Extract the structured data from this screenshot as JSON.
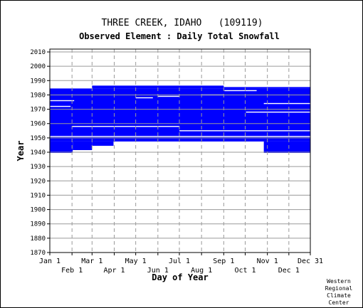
{
  "chart_data": {
    "type": "heatmap",
    "title": "THREE CREEK, IDAHO   (109119)",
    "subtitle": "Observed Element : Daily Total Snowfall",
    "xlabel": "Day of Year",
    "ylabel": "Year",
    "xlim": [
      1,
      365
    ],
    "ylim": [
      1870,
      2012
    ],
    "y_ticks": [
      2010,
      2000,
      1990,
      1980,
      1970,
      1960,
      1950,
      1940,
      1930,
      1920,
      1910,
      1900,
      1890,
      1880,
      1870
    ],
    "x_ticks_top_row": [
      {
        "label": "Jan 1",
        "day": 1
      },
      {
        "label": "Mar 1",
        "day": 60
      },
      {
        "label": "May 1",
        "day": 121
      },
      {
        "label": "Jul 1",
        "day": 182
      },
      {
        "label": "Sep 1",
        "day": 244
      },
      {
        "label": "Nov 1",
        "day": 305
      },
      {
        "label": "Dec 31",
        "day": 365
      }
    ],
    "x_ticks_bottom_row": [
      {
        "label": "Feb 1",
        "day": 32
      },
      {
        "label": "Apr 1",
        "day": 91
      },
      {
        "label": "Jun 1",
        "day": 152
      },
      {
        "label": "Aug 1",
        "day": 213
      },
      {
        "label": "Oct 1",
        "day": 274
      },
      {
        "label": "Dec 1",
        "day": 335
      }
    ],
    "grid": true,
    "data_color": "#0000ff",
    "observed_blocks": [
      {
        "day_start": 1,
        "day_end": 365,
        "year_start": 1948,
        "year_end": 1984
      },
      {
        "day_start": 1,
        "day_end": 33,
        "year_start": 1940,
        "year_end": 1947
      },
      {
        "day_start": 33,
        "day_end": 60,
        "year_start": 1942,
        "year_end": 1947
      },
      {
        "day_start": 60,
        "day_end": 90,
        "year_start": 1945,
        "year_end": 1947
      },
      {
        "day_start": 300,
        "day_end": 365,
        "year_start": 1940,
        "year_end": 1947
      },
      {
        "day_start": 60,
        "day_end": 244,
        "year_start": 1985,
        "year_end": 1986
      },
      {
        "day_start": 244,
        "day_end": 365,
        "year_start": 1985,
        "year_end": 1985
      }
    ],
    "missing_gaps": [
      {
        "day_start": 1,
        "day_end": 365,
        "year": 1951
      },
      {
        "day_start": 32,
        "day_end": 182,
        "year": 1958
      },
      {
        "day_start": 182,
        "day_end": 365,
        "year": 1955
      },
      {
        "day_start": 275,
        "day_end": 365,
        "year": 1968
      },
      {
        "day_start": 1,
        "day_end": 35,
        "year": 1976
      },
      {
        "day_start": 1,
        "day_end": 30,
        "year": 1972
      },
      {
        "day_start": 300,
        "day_end": 365,
        "year": 1974
      },
      {
        "day_start": 121,
        "day_end": 145,
        "year": 1978
      },
      {
        "day_start": 152,
        "day_end": 182,
        "year": 1979
      },
      {
        "day_start": 213,
        "day_end": 244,
        "year": 1980
      },
      {
        "day_start": 245,
        "day_end": 290,
        "year": 1983
      }
    ]
  },
  "credit": [
    "Western",
    "Regional",
    "Climate",
    "Center"
  ]
}
